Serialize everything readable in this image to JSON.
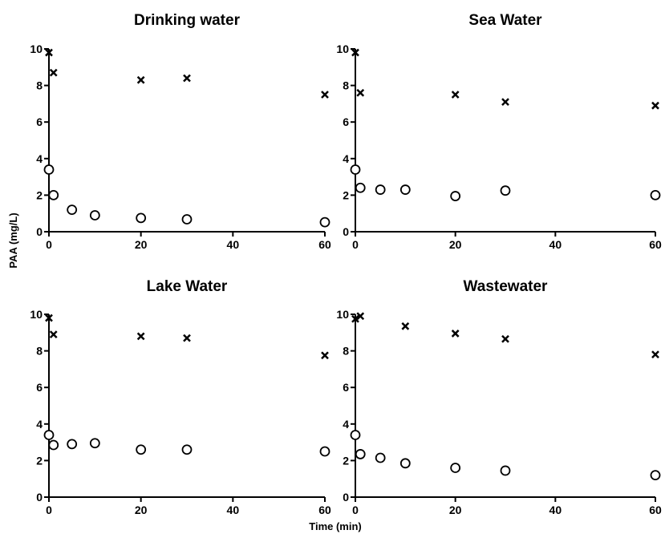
{
  "figure": {
    "ylabel": "PAA (mg/L)",
    "xlabel": "Time (min)"
  },
  "chart_data": [
    {
      "type": "scatter",
      "title": "Drinking water",
      "xlim": [
        0,
        60
      ],
      "ylim": [
        0,
        10
      ],
      "xticks": [
        "0",
        "20",
        "40",
        "60"
      ],
      "yticks": [
        "0",
        "2",
        "4",
        "6",
        "8",
        "10"
      ],
      "series": [
        {
          "marker": "x",
          "x": [
            0,
            1,
            20,
            30,
            60
          ],
          "y": [
            9.8,
            8.7,
            8.3,
            8.4,
            7.5
          ]
        },
        {
          "marker": "o",
          "x": [
            0,
            1,
            5,
            10,
            20,
            30,
            60
          ],
          "y": [
            3.4,
            2.0,
            1.2,
            0.9,
            0.75,
            0.68,
            0.52
          ]
        }
      ]
    },
    {
      "type": "scatter",
      "title": "Sea Water",
      "xlim": [
        0,
        60
      ],
      "ylim": [
        0,
        10
      ],
      "xticks": [
        "0",
        "20",
        "40",
        "60"
      ],
      "yticks": [
        "0",
        "2",
        "4",
        "6",
        "8",
        "10"
      ],
      "series": [
        {
          "marker": "x",
          "x": [
            0,
            1,
            20,
            30,
            60
          ],
          "y": [
            9.8,
            7.6,
            7.5,
            7.1,
            6.9
          ]
        },
        {
          "marker": "o",
          "x": [
            0,
            1,
            5,
            10,
            20,
            30,
            60
          ],
          "y": [
            3.4,
            2.4,
            2.3,
            2.3,
            1.95,
            2.25,
            2.0
          ]
        }
      ]
    },
    {
      "type": "scatter",
      "title": "Lake Water",
      "xlim": [
        0,
        60
      ],
      "ylim": [
        0,
        10
      ],
      "xticks": [
        "0",
        "20",
        "40",
        "60"
      ],
      "yticks": [
        "0",
        "2",
        "4",
        "6",
        "8",
        "10"
      ],
      "series": [
        {
          "marker": "x",
          "x": [
            0,
            1,
            20,
            30,
            60
          ],
          "y": [
            9.8,
            8.9,
            8.8,
            8.7,
            7.75
          ]
        },
        {
          "marker": "o",
          "x": [
            0,
            1,
            5,
            10,
            20,
            30,
            60
          ],
          "y": [
            3.4,
            2.85,
            2.9,
            2.95,
            2.6,
            2.6,
            2.5
          ]
        }
      ]
    },
    {
      "type": "scatter",
      "title": "Wastewater",
      "xlim": [
        0,
        60
      ],
      "ylim": [
        0,
        10
      ],
      "xticks": [
        "0",
        "20",
        "40",
        "60"
      ],
      "yticks": [
        "0",
        "2",
        "4",
        "6",
        "8",
        "10"
      ],
      "series": [
        {
          "marker": "x",
          "x": [
            0,
            1,
            10,
            20,
            30,
            60
          ],
          "y": [
            9.75,
            9.9,
            9.35,
            8.95,
            8.65,
            7.8
          ]
        },
        {
          "marker": "o",
          "x": [
            0,
            1,
            5,
            10,
            20,
            30,
            60
          ],
          "y": [
            3.4,
            2.35,
            2.15,
            1.85,
            1.6,
            1.45,
            1.2
          ]
        }
      ]
    }
  ]
}
